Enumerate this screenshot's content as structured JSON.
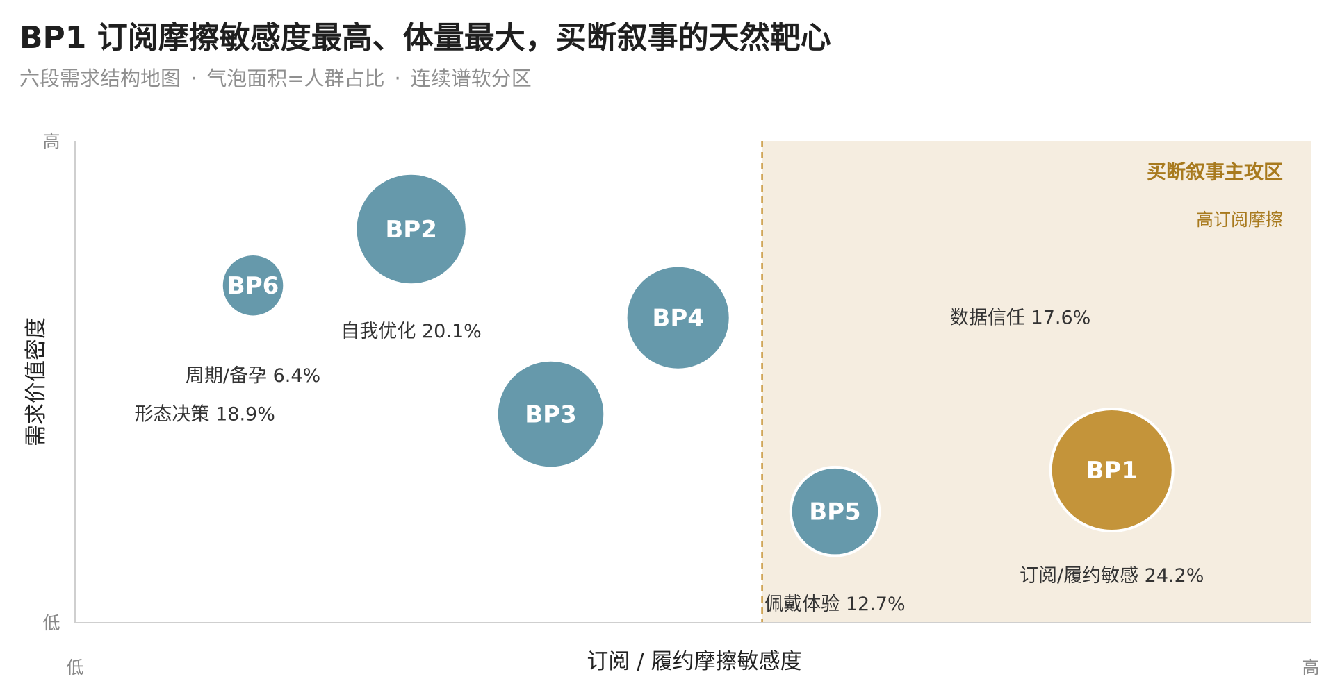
{
  "header": {
    "title": "BP1 订阅摩擦敏感度最高、体量最大，买断叙事的天然靶心",
    "subtitle_parts": [
      "六段需求结构地图",
      "气泡面积=人群占比",
      "连续谱软分区"
    ],
    "subtitle_separator": "·"
  },
  "chart_data": {
    "type": "scatter",
    "title": "BP1 订阅摩擦敏感度最高、体量最大，买断叙事的天然靶心",
    "subtitle": "六段需求结构地图 · 气泡面积=人群占比 · 连续谱软分区",
    "xlabel": "订阅 / 履约摩擦敏感度",
    "ylabel": "需求价值密度",
    "x_tick_low": "低",
    "x_tick_high": "高",
    "y_tick_low": "低",
    "y_tick_high": "高",
    "xlim": [
      0,
      100
    ],
    "ylim": [
      0,
      100
    ],
    "grid": false,
    "zone": {
      "title": "买断叙事主攻区",
      "subtitle": "高订阅摩擦",
      "x_start": 55.6,
      "color": "#f5ede0",
      "line_color": "#c8963a"
    },
    "points": [
      {
        "id": "BP1",
        "label": "订阅/履约敏感 24.2%",
        "share": 24.2,
        "x": 83.9,
        "y": 31.7,
        "highlight": true,
        "color": "#c4943a",
        "label_x": 83.9,
        "label_y": 9.8
      },
      {
        "id": "BP2",
        "label": "自我优化 20.1%",
        "share": 20.1,
        "x": 27.2,
        "y": 81.7,
        "highlight": false,
        "color": "#6699ab",
        "label_x": 27.2,
        "label_y": 60.5
      },
      {
        "id": "BP3",
        "label": "形态决策 18.9%",
        "share": 18.9,
        "x": 38.5,
        "y": 43.3,
        "highlight": false,
        "color": "#6699ab",
        "label_x": 10.5,
        "label_y": 43.3
      },
      {
        "id": "BP4",
        "label": "数据信任 17.6%",
        "share": 17.6,
        "x": 48.8,
        "y": 63.3,
        "highlight": false,
        "color": "#6699ab",
        "label_x": 76.5,
        "label_y": 63.3
      },
      {
        "id": "BP5",
        "label": "佩戴体验 12.7%",
        "share": 12.7,
        "x": 61.5,
        "y": 23.1,
        "highlight": false,
        "color": "#6699ab",
        "label_x": 61.5,
        "label_y": 3.9
      },
      {
        "id": "BP6",
        "label": "周期/备孕 6.4%",
        "share": 6.4,
        "x": 14.4,
        "y": 70.0,
        "highlight": false,
        "color": "#6699ab",
        "label_x": 14.4,
        "label_y": 51.3
      }
    ]
  },
  "colors": {
    "axis": "#cfcfcf",
    "bubble_default": "#6699ab",
    "bubble_highlight": "#c4943a",
    "zone_fill": "#f5ede0",
    "zone_text": "#a87a1e",
    "title": "#1f1f1f",
    "subtitle": "#8f8f8f",
    "point_label": "#333333"
  }
}
